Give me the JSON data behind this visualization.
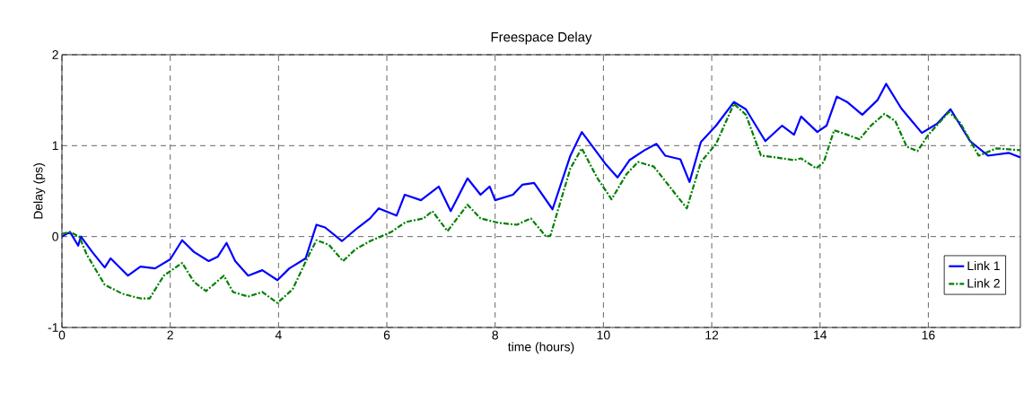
{
  "chart_data": {
    "type": "line",
    "title": "Freespace Delay",
    "xlabel": "time (hours)",
    "ylabel": "Delay (ps)",
    "xlim": [
      0,
      17.7
    ],
    "ylim": [
      -1,
      2
    ],
    "xticks": [
      0,
      2,
      4,
      6,
      8,
      10,
      12,
      14,
      16
    ],
    "yticks": [
      -1,
      0,
      1,
      2
    ],
    "grid": true,
    "legend": "bottom right",
    "marker": "none",
    "series": [
      {
        "name": "Link 1",
        "color": "#0000ff",
        "line_style": "solid",
        "x": [
          0,
          0.15,
          0.3,
          0.35,
          0.56,
          0.79,
          0.9,
          1.22,
          1.45,
          1.72,
          2.0,
          2.22,
          2.44,
          2.71,
          2.88,
          3.04,
          3.2,
          3.44,
          3.7,
          3.98,
          4.2,
          4.5,
          4.7,
          4.86,
          5.17,
          5.47,
          5.69,
          5.85,
          6.18,
          6.33,
          6.63,
          6.96,
          7.18,
          7.49,
          7.73,
          7.9,
          8.0,
          8.33,
          8.5,
          8.72,
          9.06,
          9.39,
          9.6,
          10.05,
          10.26,
          10.48,
          10.76,
          10.98,
          11.14,
          11.42,
          11.59,
          11.8,
          12.08,
          12.41,
          12.63,
          12.99,
          13.3,
          13.52,
          13.65,
          13.95,
          14.12,
          14.31,
          14.5,
          14.78,
          15.06,
          15.22,
          15.5,
          15.88,
          16.16,
          16.41,
          16.77,
          17.1,
          17.49,
          17.7
        ],
        "values": [
          0,
          0.05,
          -0.1,
          0.0,
          -0.17,
          -0.34,
          -0.24,
          -0.43,
          -0.33,
          -0.35,
          -0.25,
          -0.04,
          -0.17,
          -0.27,
          -0.22,
          -0.07,
          -0.27,
          -0.43,
          -0.37,
          -0.48,
          -0.35,
          -0.24,
          0.13,
          0.1,
          -0.05,
          0.1,
          0.2,
          0.31,
          0.23,
          0.46,
          0.4,
          0.55,
          0.28,
          0.64,
          0.46,
          0.55,
          0.4,
          0.46,
          0.57,
          0.59,
          0.3,
          0.89,
          1.15,
          0.79,
          0.65,
          0.84,
          0.95,
          1.02,
          0.89,
          0.85,
          0.6,
          1.04,
          1.22,
          1.48,
          1.4,
          1.05,
          1.22,
          1.12,
          1.32,
          1.15,
          1.22,
          1.54,
          1.48,
          1.34,
          1.5,
          1.68,
          1.41,
          1.14,
          1.24,
          1.4,
          1.05,
          0.89,
          0.92,
          0.87
        ]
      },
      {
        "name": "Link 2",
        "color": "#008000",
        "line_style": "dashed",
        "x": [
          0,
          0.15,
          0.32,
          0.46,
          0.79,
          1.12,
          1.45,
          1.62,
          1.88,
          2.22,
          2.44,
          2.66,
          2.99,
          3.16,
          3.44,
          3.7,
          3.98,
          4.26,
          4.53,
          4.7,
          4.93,
          5.19,
          5.42,
          5.69,
          6.08,
          6.35,
          6.68,
          6.84,
          7.12,
          7.49,
          7.73,
          8.07,
          8.4,
          8.66,
          8.94,
          9.02,
          9.39,
          9.6,
          9.88,
          10.15,
          10.43,
          10.64,
          10.93,
          11.54,
          11.8,
          12.08,
          12.41,
          12.63,
          12.91,
          13.19,
          13.52,
          13.65,
          13.93,
          14.07,
          14.26,
          14.5,
          14.73,
          14.94,
          15.19,
          15.39,
          15.6,
          15.8,
          16.0,
          16.38,
          16.59,
          16.93,
          17.26,
          17.7
        ],
        "values": [
          0.03,
          0.05,
          0.0,
          -0.2,
          -0.53,
          -0.63,
          -0.68,
          -0.68,
          -0.43,
          -0.29,
          -0.5,
          -0.6,
          -0.43,
          -0.61,
          -0.66,
          -0.61,
          -0.73,
          -0.58,
          -0.24,
          -0.04,
          -0.09,
          -0.27,
          -0.14,
          -0.05,
          0.05,
          0.16,
          0.2,
          0.28,
          0.06,
          0.35,
          0.2,
          0.15,
          0.13,
          0.2,
          0.0,
          0.01,
          0.75,
          0.97,
          0.65,
          0.41,
          0.69,
          0.82,
          0.77,
          0.31,
          0.82,
          1.02,
          1.46,
          1.34,
          0.89,
          0.87,
          0.84,
          0.86,
          0.75,
          0.82,
          1.17,
          1.12,
          1.07,
          1.22,
          1.35,
          1.27,
          0.99,
          0.94,
          1.12,
          1.37,
          1.25,
          0.89,
          0.97,
          0.95
        ]
      }
    ]
  }
}
